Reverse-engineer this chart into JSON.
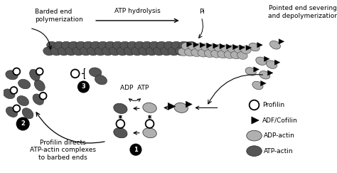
{
  "bg_color": "#ffffff",
  "adp_actin_color": "#b0b0b0",
  "atp_actin_color": "#555555",
  "label_barded": "Barded end\npolymerization",
  "label_atp_hydrolysis": "ATP hydrolysis",
  "label_pi": "Pi",
  "label_pointed": "Pointed end severing\nand depolymerization",
  "label_adp_atp": "ADP  ATP",
  "label_profilin_directs": "Profilin directs\nATP-actin complexes\nto barbed ends",
  "legend_profilin": "Profilin",
  "legend_adf": "ADF/Cofilin",
  "legend_adp": "ADP-actin",
  "legend_atp": "ATP-actin",
  "fontsize": 6.5
}
